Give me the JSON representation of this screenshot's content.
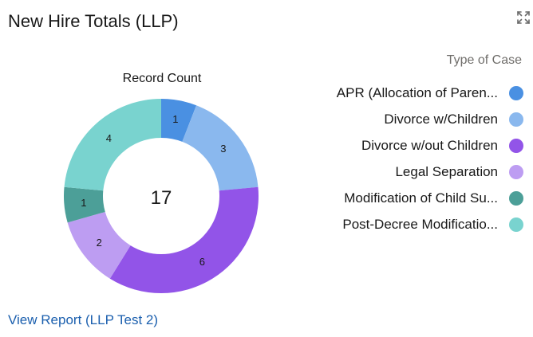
{
  "card": {
    "title": "New Hire Totals (LLP)",
    "expand_icon": "expand-arrows-icon",
    "view_report_label": "View Report (LLP Test 2)"
  },
  "colors": {
    "text": "#181818",
    "muted": "#706e6b",
    "link": "#1b5fae",
    "icon": "#6b6b6b"
  },
  "chart_data": {
    "type": "pie",
    "subtype": "donut",
    "title": "Record Count",
    "center_total": "17",
    "legend_title": "Type of Case",
    "legend_position": "right",
    "slices": [
      {
        "label": "APR (Allocation of Paren...",
        "value": 1,
        "color": "#4a90e2"
      },
      {
        "label": "Divorce w/Children",
        "value": 3,
        "color": "#8ab8ee"
      },
      {
        "label": "Divorce w/out Children",
        "value": 6,
        "color": "#9254e8"
      },
      {
        "label": "Legal Separation",
        "value": 2,
        "color": "#bd9df2"
      },
      {
        "label": "Modification of Child Su...",
        "value": 1,
        "color": "#4c9f98"
      },
      {
        "label": "Post-Decree Modificatio...",
        "value": 4,
        "color": "#79d3cf"
      }
    ]
  }
}
